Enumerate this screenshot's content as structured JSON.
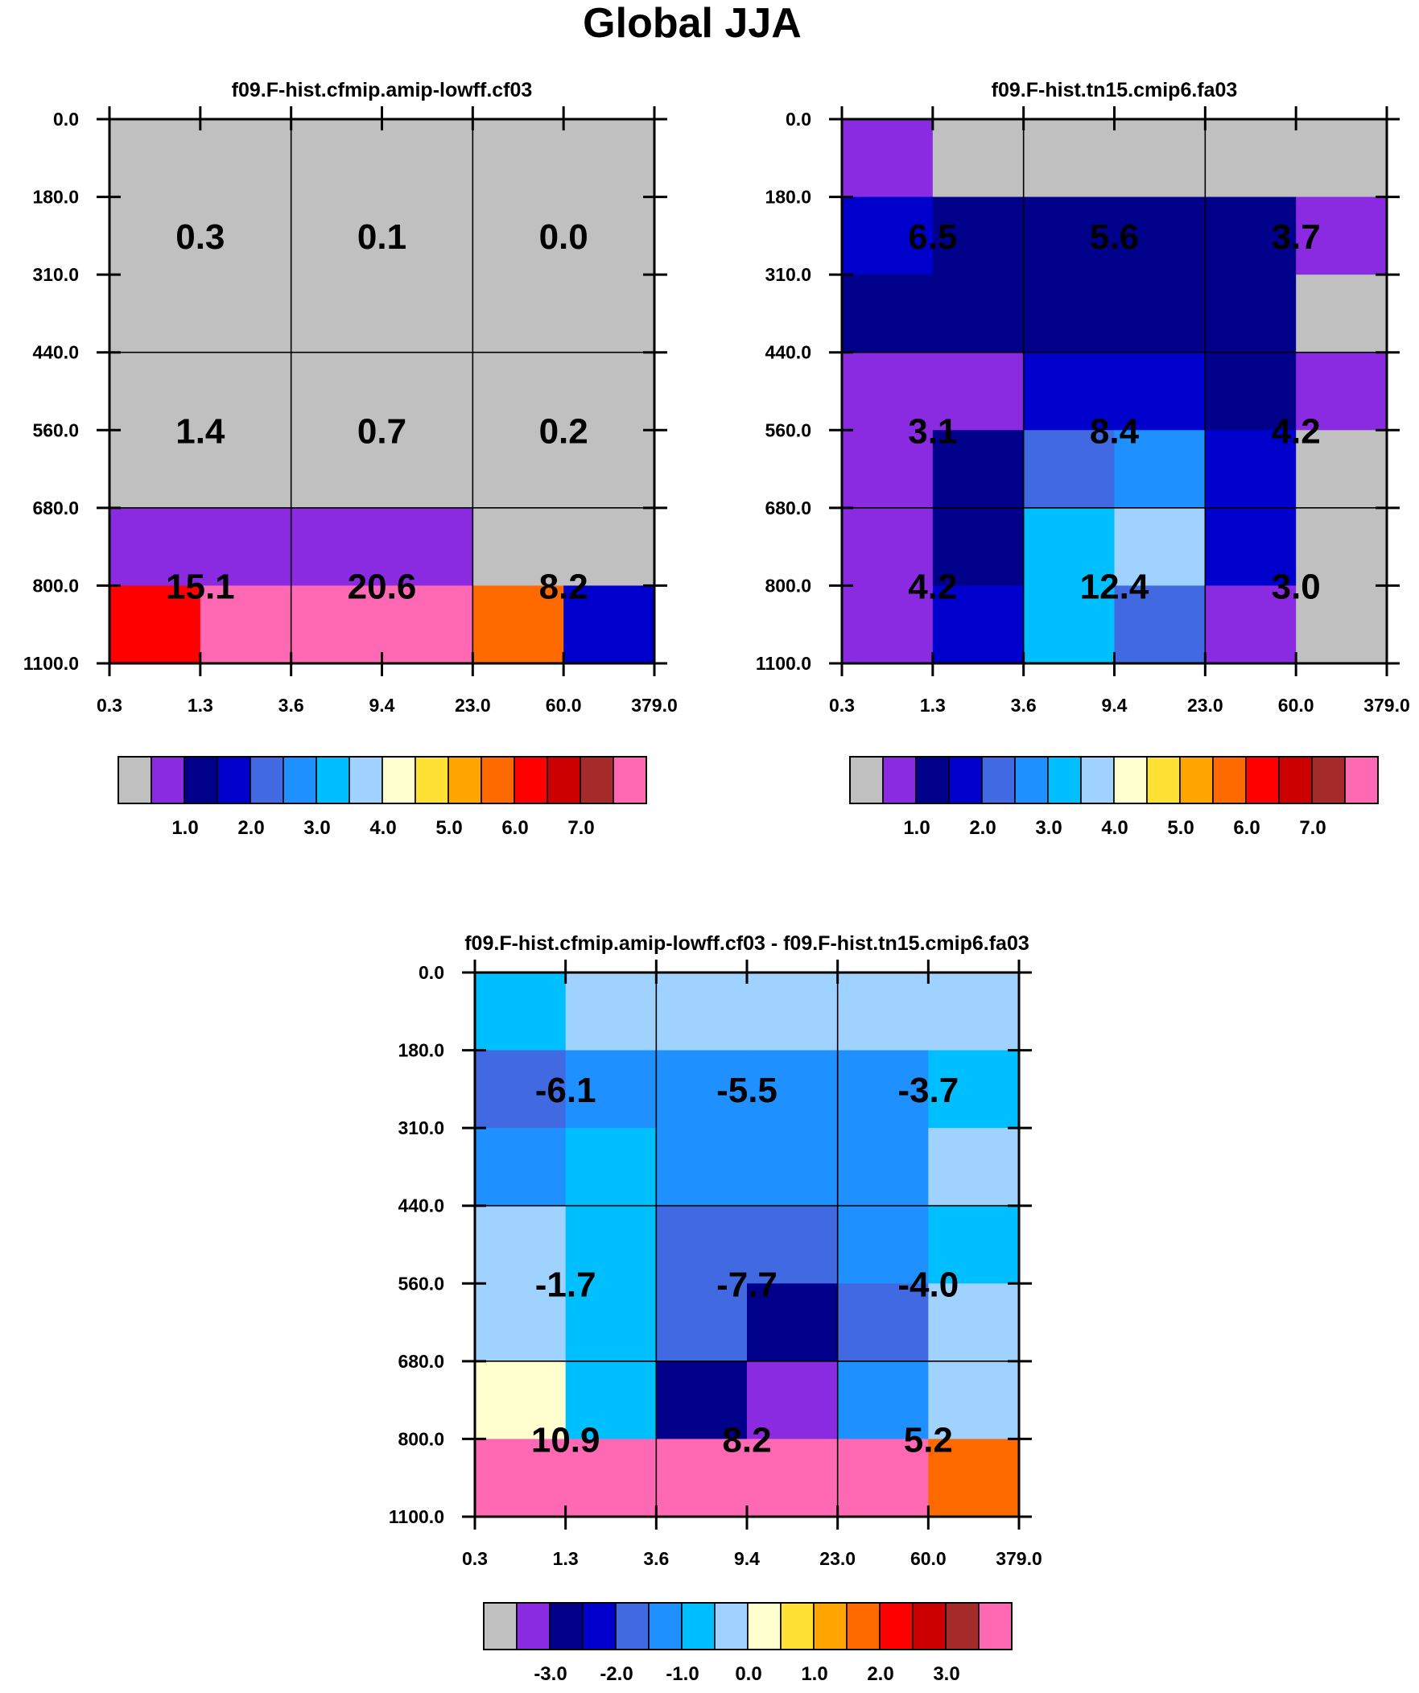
{
  "page": {
    "title": "Global JJA"
  },
  "scales": {
    "x_ticks": [
      "0.3",
      "1.3",
      "3.6",
      "9.4",
      "23.0",
      "60.0",
      "379.0"
    ],
    "y_ticks": [
      "0.0",
      "180.0",
      "310.0",
      "440.0",
      "560.0",
      "680.0",
      "800.0",
      "1100.0"
    ]
  },
  "colorbars": {
    "abs": {
      "colors": [
        "#c0c0c0",
        "#8a2be2",
        "#00008b",
        "#0000cd",
        "#4169e1",
        "#1e90ff",
        "#00bfff",
        "#a0d2ff",
        "#ffffd0",
        "#ffe135",
        "#ffa500",
        "#ff6a00",
        "#ff0000",
        "#cc0000",
        "#a52a2a",
        "#ff69b4"
      ],
      "labels": [
        "1.0",
        "2.0",
        "3.0",
        "4.0",
        "5.0",
        "6.0",
        "7.0"
      ],
      "label_after_box": [
        2,
        4,
        6,
        8,
        10,
        12,
        14
      ]
    },
    "diff": {
      "colors": [
        "#c0c0c0",
        "#8a2be2",
        "#00008b",
        "#0000cd",
        "#4169e1",
        "#1e90ff",
        "#00bfff",
        "#a0d2ff",
        "#ffffd0",
        "#ffe135",
        "#ffa500",
        "#ff6a00",
        "#ff0000",
        "#cc0000",
        "#a52a2a",
        "#ff69b4"
      ],
      "labels": [
        "-3.0",
        "-2.0",
        "-1.0",
        "0.0",
        "1.0",
        "2.0",
        "3.0"
      ],
      "label_after_box": [
        2,
        4,
        6,
        8,
        10,
        12,
        14
      ]
    }
  },
  "chart_data": [
    {
      "type": "heatmap",
      "title": "f09.F-hist.cfmip.amip-lowff.cf03",
      "xlabel": "",
      "ylabel": "",
      "x_bins": [
        "0.3",
        "1.3",
        "3.6",
        "9.4",
        "23.0",
        "60.0",
        "379.0"
      ],
      "y_bins": [
        "0.0",
        "180.0",
        "310.0",
        "440.0",
        "560.0",
        "680.0",
        "800.0",
        "1100.0"
      ],
      "cells_color_index": [
        [
          0,
          0,
          0,
          0,
          0,
          0
        ],
        [
          0,
          0,
          0,
          0,
          0,
          0
        ],
        [
          0,
          0,
          0,
          0,
          0,
          0
        ],
        [
          0,
          0,
          0,
          0,
          0,
          0
        ],
        [
          0,
          0,
          0,
          0,
          0,
          0
        ],
        [
          1,
          1,
          1,
          1,
          0,
          0
        ],
        [
          12,
          15,
          15,
          15,
          11,
          3
        ]
      ],
      "group_values": [
        [
          "0.3",
          "0.1",
          "0.0"
        ],
        [
          "1.4",
          "0.7",
          "0.2"
        ],
        [
          "15.1",
          "20.6",
          "8.2"
        ]
      ],
      "colorbar": "abs"
    },
    {
      "type": "heatmap",
      "title": "f09.F-hist.tn15.cmip6.fa03",
      "xlabel": "",
      "ylabel": "",
      "x_bins": [
        "0.3",
        "1.3",
        "3.6",
        "9.4",
        "23.0",
        "60.0",
        "379.0"
      ],
      "y_bins": [
        "0.0",
        "180.0",
        "310.0",
        "440.0",
        "560.0",
        "680.0",
        "800.0",
        "1100.0"
      ],
      "cells_color_index": [
        [
          1,
          0,
          0,
          0,
          0,
          0
        ],
        [
          3,
          2,
          2,
          2,
          2,
          1
        ],
        [
          2,
          2,
          2,
          2,
          2,
          0
        ],
        [
          1,
          1,
          3,
          3,
          2,
          1
        ],
        [
          1,
          2,
          4,
          5,
          3,
          0
        ],
        [
          1,
          2,
          6,
          7,
          3,
          0
        ],
        [
          1,
          3,
          6,
          4,
          1,
          0
        ]
      ],
      "group_values": [
        [
          "6.5",
          "5.6",
          "3.7"
        ],
        [
          "3.1",
          "8.4",
          "4.2"
        ],
        [
          "4.2",
          "12.4",
          "3.0"
        ]
      ],
      "colorbar": "abs"
    },
    {
      "type": "heatmap",
      "title": "f09.F-hist.cfmip.amip-lowff.cf03 - f09.F-hist.tn15.cmip6.fa03",
      "xlabel": "",
      "ylabel": "",
      "x_bins": [
        "0.3",
        "1.3",
        "3.6",
        "9.4",
        "23.0",
        "60.0",
        "379.0"
      ],
      "y_bins": [
        "0.0",
        "180.0",
        "310.0",
        "440.0",
        "560.0",
        "680.0",
        "800.0",
        "1100.0"
      ],
      "cells_color_index": [
        [
          6,
          7,
          7,
          7,
          7,
          7
        ],
        [
          4,
          5,
          5,
          5,
          5,
          6
        ],
        [
          5,
          6,
          5,
          5,
          5,
          7
        ],
        [
          7,
          6,
          4,
          4,
          5,
          6
        ],
        [
          7,
          6,
          4,
          2,
          4,
          7
        ],
        [
          8,
          6,
          2,
          1,
          5,
          7
        ],
        [
          15,
          15,
          15,
          15,
          15,
          11
        ]
      ],
      "group_values": [
        [
          "-6.1",
          "-5.5",
          "-3.7"
        ],
        [
          "-1.7",
          "-7.7",
          "-4.0"
        ],
        [
          "10.9",
          "8.2",
          "5.2"
        ]
      ],
      "colorbar": "diff"
    }
  ]
}
